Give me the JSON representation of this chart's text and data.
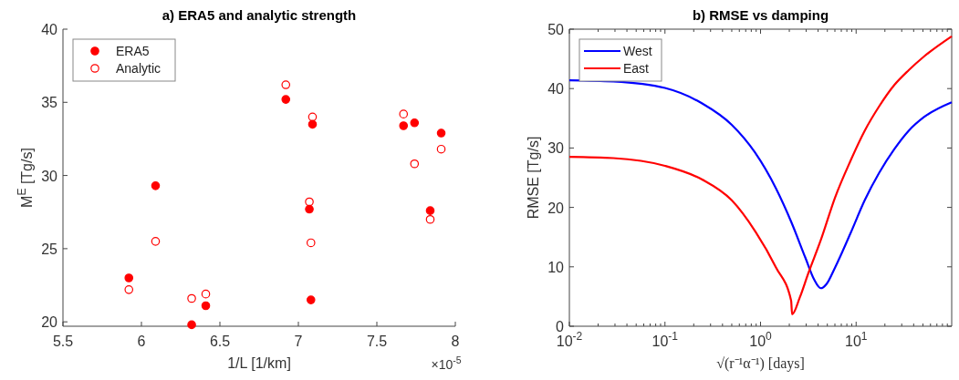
{
  "chart_data": [
    {
      "type": "scatter",
      "title": "a) ERA5 and analytic strength",
      "xlabel": "1/L [1/km]",
      "ylabel": "M$^{E}$ [Tg/s]",
      "xlim": [
        5.5,
        8
      ],
      "xticks": [
        5.5,
        6,
        6.5,
        7,
        7.5,
        8
      ],
      "ylim": [
        19.7,
        40
      ],
      "yticks": [
        20,
        25,
        30,
        35,
        40
      ],
      "annotations": [
        "×10$^{-5}$"
      ],
      "legend": "top left",
      "marker": "circle",
      "grid": false,
      "series": [
        {
          "name": "ERA5",
          "color": "#ff0000",
          "x": [
            5.92,
            6.09,
            6.32,
            6.41,
            6.92,
            7.09,
            7.07,
            7.08,
            7.67,
            7.74,
            7.84,
            7.91
          ],
          "values": [
            23.0,
            29.3,
            19.8,
            21.1,
            35.2,
            33.5,
            27.7,
            21.5,
            33.4,
            33.6,
            27.6,
            32.9
          ]
        },
        {
          "name": "Analytic",
          "color": "#ff0000",
          "x": [
            5.92,
            6.09,
            6.32,
            6.41,
            6.92,
            7.09,
            7.07,
            7.08,
            7.67,
            7.74,
            7.84,
            7.91
          ],
          "values": [
            22.2,
            25.5,
            21.6,
            21.9,
            36.2,
            34.0,
            28.2,
            25.4,
            34.2,
            30.8,
            27.0,
            31.8
          ]
        }
      ]
    },
    {
      "type": "line",
      "title": "b) RMSE vs damping",
      "xlabel": "√(r⁻¹α⁻¹) [days]",
      "ylabel": "RMSE [Tg/s]",
      "log": "x",
      "xlim": [
        0.01,
        100
      ],
      "xticks": [
        {
          "value": 0.01,
          "label": "10$^{-2}$"
        },
        {
          "value": 0.1,
          "label": "10$^{-1}$"
        },
        {
          "value": 1,
          "label": "10$^{0}$"
        },
        {
          "value": 10,
          "label": "10$^{1}$"
        }
      ],
      "ylim": [
        0,
        50
      ],
      "yticks": [
        0,
        10,
        20,
        30,
        40,
        50
      ],
      "legend": "top left",
      "grid": false,
      "marker": "none",
      "line_style": "solid",
      "series": [
        {
          "name": "West",
          "color": "#0000ff",
          "x": [
            0.01,
            0.0288,
            0.1,
            0.245,
            0.5,
            0.87,
            1.45,
            2.09,
            2.95,
            3.63,
            4.27,
            4.9,
            6.03,
            8.71,
            12.3,
            17.4,
            25.1,
            35.5,
            51.3,
            100
          ],
          "values": [
            41.4,
            41.2,
            40.1,
            37.5,
            33.9,
            29.3,
            23.2,
            17.6,
            11.5,
            7.9,
            6.4,
            7.1,
            9.9,
            15.6,
            21.2,
            25.8,
            29.8,
            32.9,
            35.2,
            37.7
          ]
        },
        {
          "name": "East",
          "color": "#ff0000",
          "x": [
            0.01,
            0.0288,
            0.1,
            0.245,
            0.5,
            0.87,
            1.45,
            2.09,
            2.14,
            2.57,
            3.16,
            4.27,
            6.03,
            8.71,
            12.3,
            17.4,
            25.1,
            35.5,
            51.3,
            100
          ],
          "values": [
            28.5,
            28.3,
            27.0,
            24.7,
            21.2,
            16.1,
            9.9,
            4.3,
            2.0,
            4.8,
            8.9,
            14.5,
            21.7,
            27.8,
            32.9,
            37.0,
            40.6,
            43.1,
            45.4,
            48.8
          ]
        }
      ]
    }
  ]
}
